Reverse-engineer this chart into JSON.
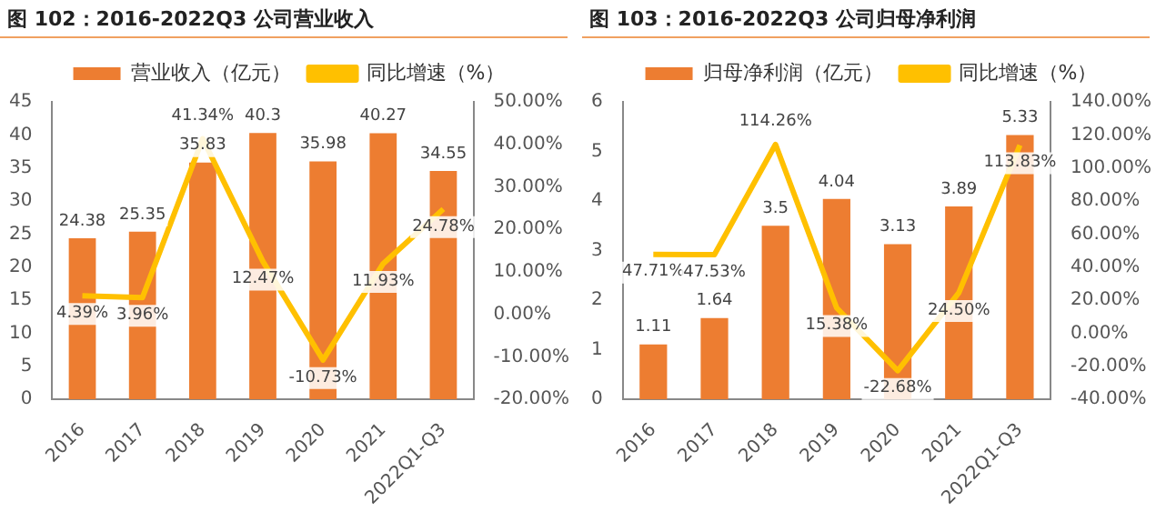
{
  "chart_data": [
    {
      "type": "bar",
      "title": "图 102：2016-2022Q3 公司营业收入",
      "categories": [
        "2016",
        "2017",
        "2018",
        "2019",
        "2020",
        "2021",
        "2022Q1-Q3"
      ],
      "series": [
        {
          "name": "营业收入（亿元）",
          "color": "#ed7d31",
          "values": [
            24.38,
            25.35,
            35.83,
            40.3,
            35.98,
            40.27,
            34.55
          ],
          "value_labels": [
            "24.38",
            "25.35",
            "35.83",
            "40.3",
            "35.98",
            "40.27",
            "34.55"
          ]
        },
        {
          "name": "同比增速（%）",
          "type": "line",
          "axis": "y2",
          "color": "#ffc000",
          "values": [
            4.39,
            3.96,
            41.34,
            12.47,
            -10.73,
            11.93,
            24.78
          ],
          "value_labels": [
            "4.39%",
            "3.96%",
            "41.34%",
            "12.47%",
            "-10.73%",
            "11.93%",
            "24.78%"
          ]
        }
      ],
      "ylim": [
        0,
        45
      ],
      "yticks": [
        0,
        5,
        10,
        15,
        20,
        25,
        30,
        35,
        40,
        45
      ],
      "y2lim": [
        -20,
        50
      ],
      "y2ticks": [
        {
          "value": -20,
          "label": "-20.00%"
        },
        {
          "value": -10,
          "label": "-10.00%"
        },
        {
          "value": 0,
          "label": "0.00%"
        },
        {
          "value": 10,
          "label": "10.00%"
        },
        {
          "value": 20,
          "label": "20.00%"
        },
        {
          "value": 30,
          "label": "30.00%"
        },
        {
          "value": 40,
          "label": "40.00%"
        },
        {
          "value": 50,
          "label": "50.00%"
        }
      ],
      "legend": "top",
      "grid": false,
      "marker": "none"
    },
    {
      "type": "bar",
      "title": "图 103：2016-2022Q3 公司归母净利润",
      "categories": [
        "2016",
        "2017",
        "2018",
        "2019",
        "2020",
        "2021",
        "2022Q1-Q3"
      ],
      "series": [
        {
          "name": "归母净利润（亿元）",
          "color": "#ed7d31",
          "values": [
            1.11,
            1.64,
            3.5,
            4.04,
            3.13,
            3.89,
            5.33
          ],
          "value_labels": [
            "1.11",
            "1.64",
            "3.5",
            "4.04",
            "3.13",
            "3.89",
            "5.33"
          ]
        },
        {
          "name": "同比增速（%）",
          "type": "line",
          "axis": "y2",
          "color": "#ffc000",
          "values": [
            47.71,
            47.53,
            114.26,
            15.38,
            -22.68,
            24.5,
            113.83
          ],
          "value_labels": [
            "47.71%",
            "47.53%",
            "114.26%",
            "15.38%",
            "-22.68%",
            "24.50%",
            "113.83%"
          ]
        }
      ],
      "ylim": [
        0,
        6
      ],
      "yticks": [
        0,
        1,
        2,
        3,
        4,
        5,
        6
      ],
      "y2lim": [
        -40,
        140
      ],
      "y2ticks": [
        {
          "value": -40,
          "label": "-40.00%"
        },
        {
          "value": -20,
          "label": "-20.00%"
        },
        {
          "value": 0,
          "label": "0.00%"
        },
        {
          "value": 20,
          "label": "20.00%"
        },
        {
          "value": 40,
          "label": "40.00%"
        },
        {
          "value": 60,
          "label": "60.00%"
        },
        {
          "value": 80,
          "label": "80.00%"
        },
        {
          "value": 100,
          "label": "100.00%"
        },
        {
          "value": 120,
          "label": "120.00%"
        },
        {
          "value": 140,
          "label": "140.00%"
        }
      ],
      "legend": "top",
      "grid": false,
      "marker": "none"
    }
  ]
}
